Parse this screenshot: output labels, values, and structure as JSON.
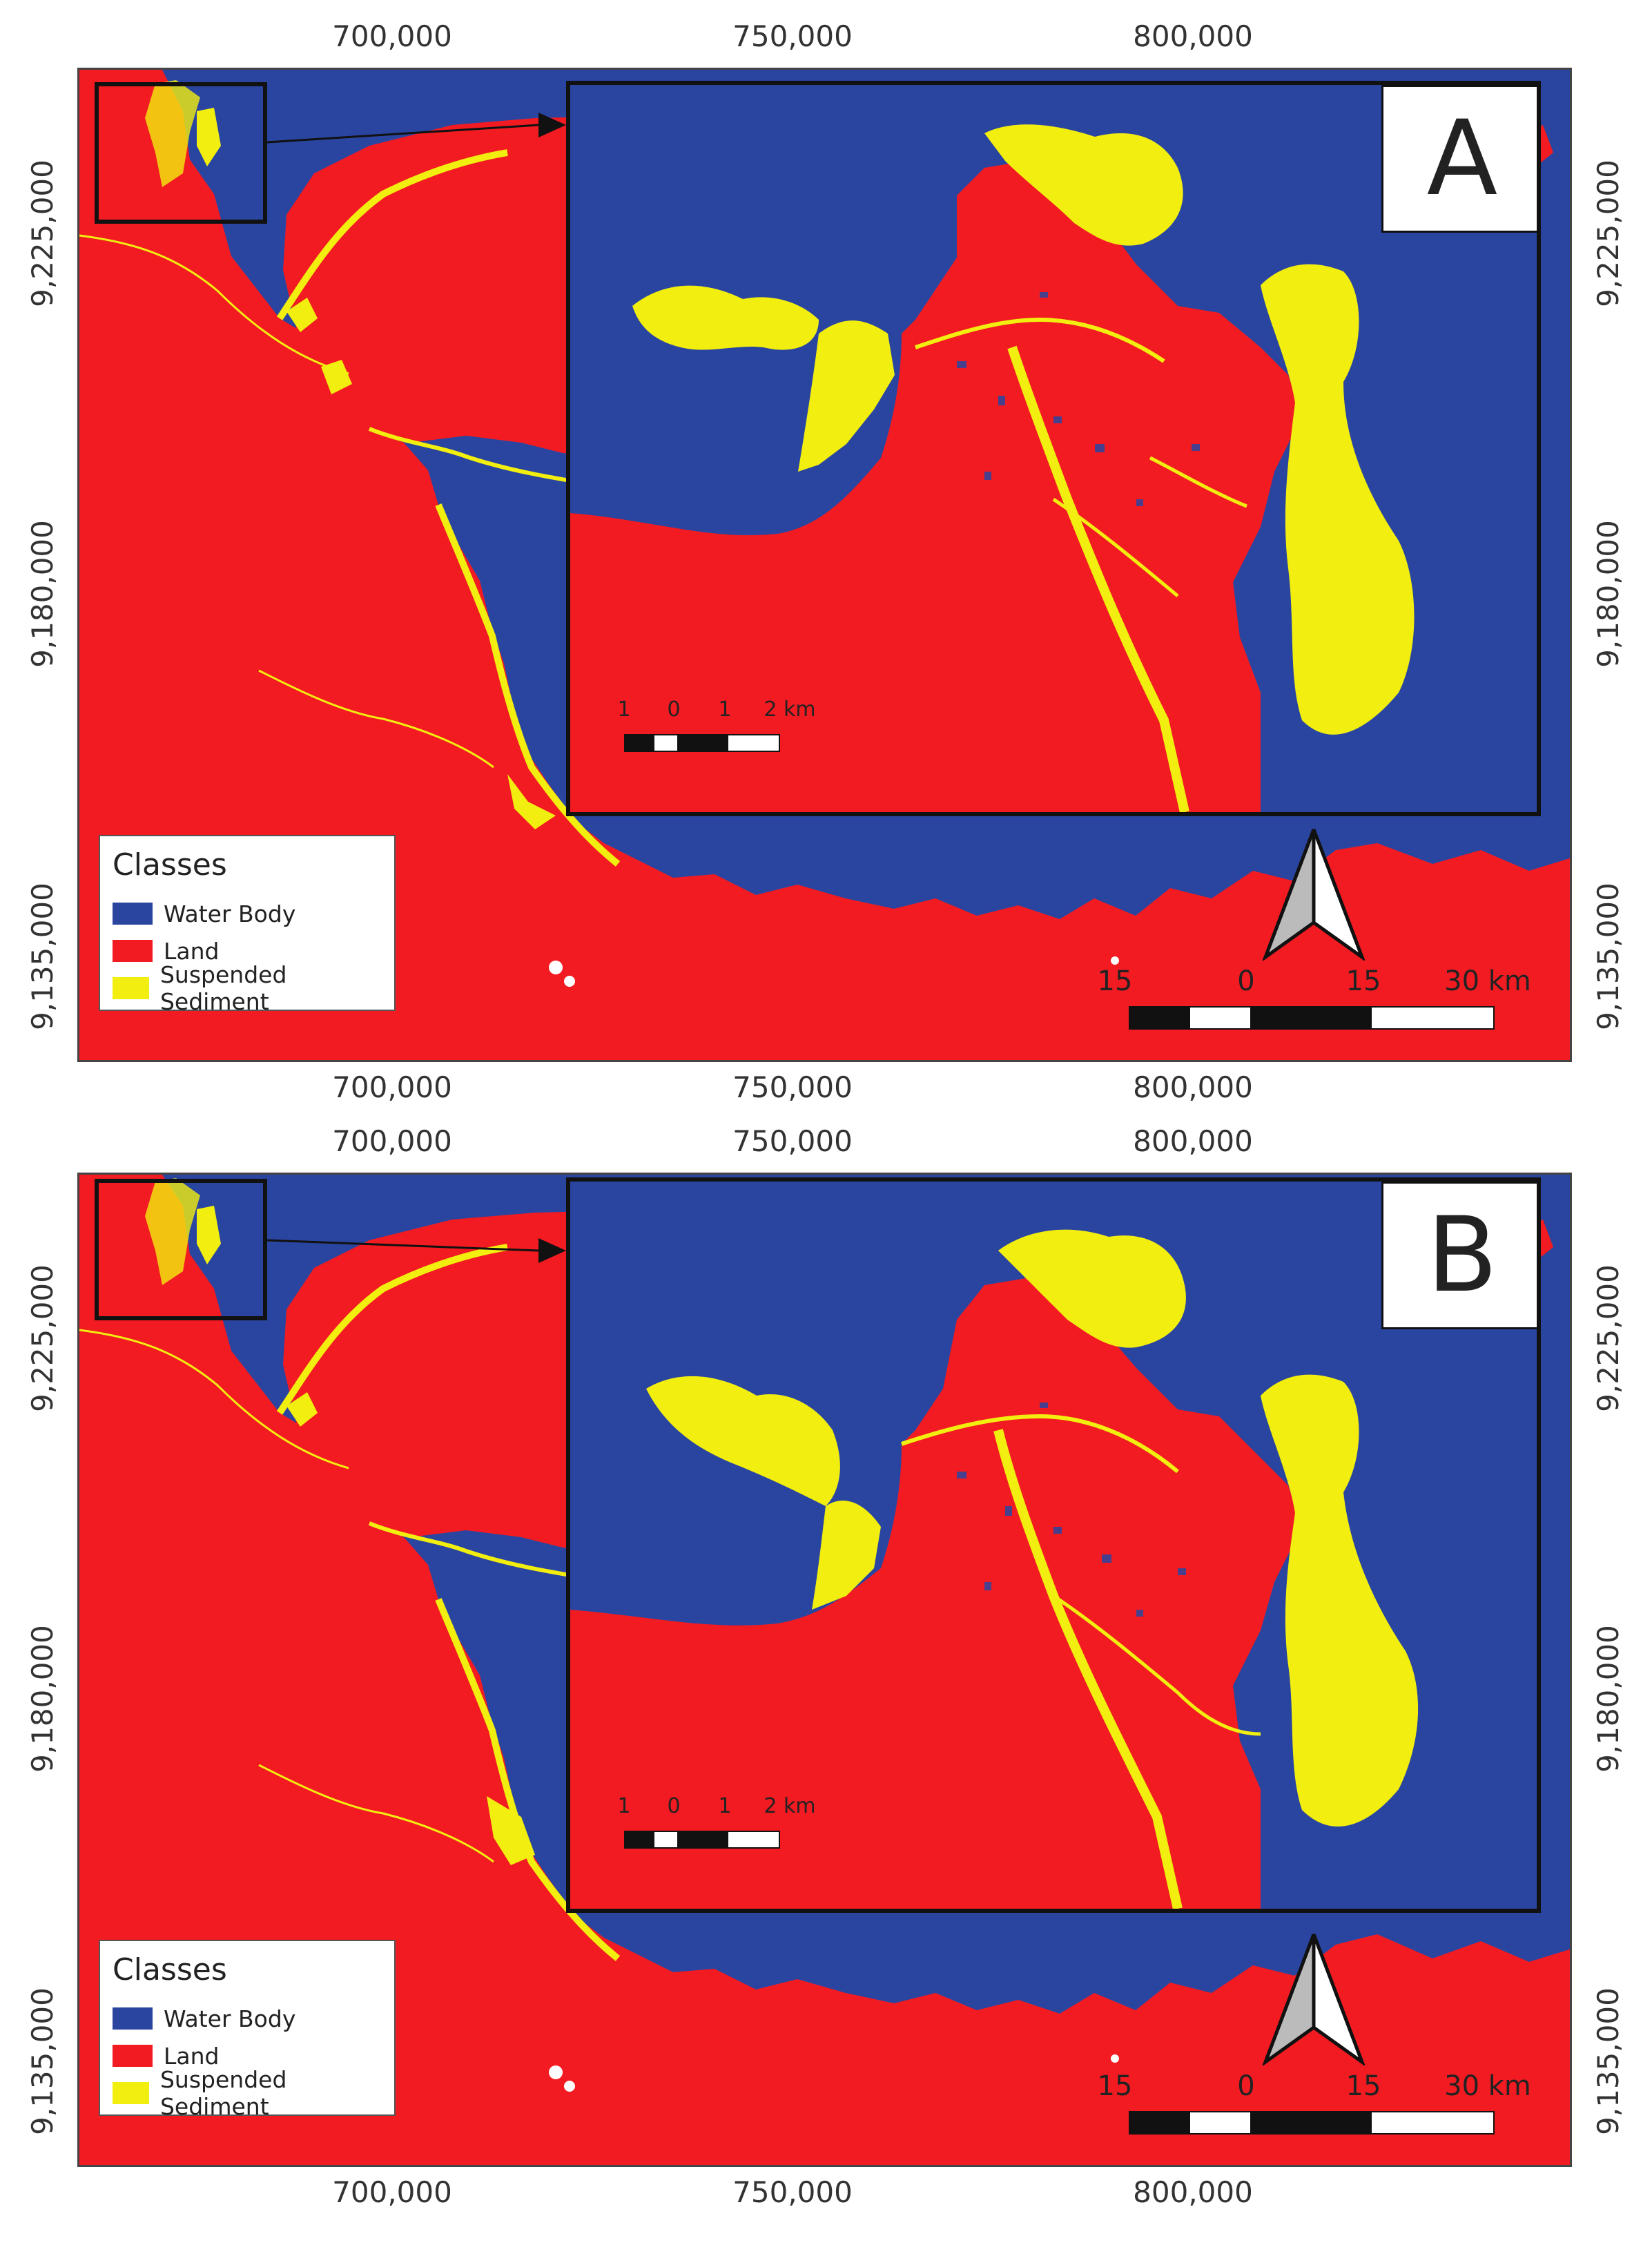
{
  "colors": {
    "water": "#2a45a0",
    "land": "#f21b22",
    "sediment": "#f2ee0f"
  },
  "panels": [
    {
      "id": "a",
      "label": "A",
      "x_ticks_top": [
        "700,000",
        "750,000",
        "800,000"
      ],
      "x_ticks_bottom": [
        "700,000",
        "750,000",
        "800,000"
      ],
      "y_ticks_left": [
        "9,225,000",
        "9,180,000",
        "9,135,000"
      ],
      "y_ticks_right": [
        "9,225,000",
        "9,180,000",
        "9,135,000"
      ],
      "legend": {
        "title": "Classes",
        "items": [
          {
            "label": "Water Body",
            "color": "#2a45a0"
          },
          {
            "label": "Land",
            "color": "#f21b22"
          },
          {
            "label": "Suspended Sediment",
            "color": "#f2ee0f"
          }
        ]
      },
      "main_scale": {
        "labels": [
          "15",
          "0",
          "15",
          "30 km"
        ]
      },
      "inset_scale": {
        "labels": [
          "1",
          "0",
          "1",
          "2 km"
        ]
      },
      "north_arrow": "north-arrow-icon"
    },
    {
      "id": "b",
      "label": "B",
      "x_ticks_top": [
        "700,000",
        "750,000",
        "800,000"
      ],
      "x_ticks_bottom": [
        "700,000",
        "750,000",
        "800,000"
      ],
      "y_ticks_left": [
        "9,225,000",
        "9,180,000",
        "9,135,000"
      ],
      "y_ticks_right": [
        "9,225,000",
        "9,180,000",
        "9,135,000"
      ],
      "legend": {
        "title": "Classes",
        "items": [
          {
            "label": "Water Body",
            "color": "#2a45a0"
          },
          {
            "label": "Land",
            "color": "#f21b22"
          },
          {
            "label": "Suspended Sediment",
            "color": "#f2ee0f"
          }
        ]
      },
      "main_scale": {
        "labels": [
          "15",
          "0",
          "15",
          "30 km"
        ]
      },
      "inset_scale": {
        "labels": [
          "1",
          "0",
          "1",
          "2 km"
        ]
      },
      "north_arrow": "north-arrow-icon"
    }
  ]
}
